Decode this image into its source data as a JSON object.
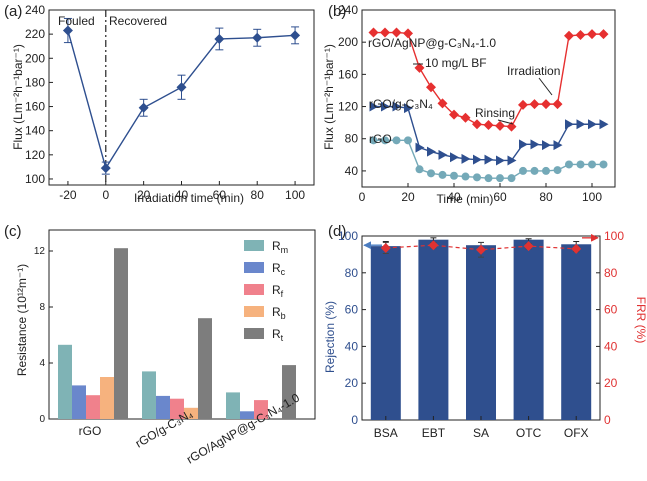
{
  "chart_data": [
    {
      "panel": "(a)",
      "type": "line",
      "xlabel": "Irradiation time (min)",
      "ylabel": "Flux (Lm⁻²h⁻¹bar⁻¹)",
      "xlim": [
        -30,
        110
      ],
      "ylim": [
        95,
        240
      ],
      "xticks": [
        -20,
        0,
        20,
        40,
        60,
        80,
        100
      ],
      "yticks": [
        100,
        120,
        140,
        160,
        180,
        200,
        220,
        240
      ],
      "divider_x": 0,
      "annotations": [
        "Fouled",
        "Recovered"
      ],
      "color": "#2e4f8f",
      "series": [
        {
          "name": "Flux",
          "x": [
            -20,
            0,
            20,
            40,
            60,
            80,
            100
          ],
          "y": [
            223,
            109,
            159,
            176,
            216,
            217,
            219
          ],
          "err": [
            10,
            5,
            7,
            10,
            9,
            7,
            7
          ]
        }
      ]
    },
    {
      "panel": "(b)",
      "type": "line",
      "xlabel": "Time (min)",
      "ylabel": "Flux (Lm⁻²h⁻¹bar⁻¹)",
      "xlim": [
        0,
        110
      ],
      "ylim": [
        20,
        240
      ],
      "xticks": [
        0,
        20,
        40,
        60,
        80,
        100
      ],
      "yticks": [
        40,
        80,
        120,
        160,
        200,
        240
      ],
      "annotations": [
        "10 mg/L BF",
        "Irradiation",
        "Rinsing"
      ],
      "series": [
        {
          "name": "rGO/AgNP@g-C₃N₄-1.0",
          "color": "#e63030",
          "marker": "diamond",
          "x": [
            5,
            10,
            15,
            20,
            25,
            30,
            35,
            40,
            45,
            50,
            55,
            60,
            65,
            70,
            75,
            80,
            85,
            90,
            95,
            100,
            105
          ],
          "y": [
            212,
            212,
            212,
            211,
            168,
            144,
            124,
            110,
            106,
            98,
            97,
            96,
            95,
            122,
            123,
            123,
            123,
            208,
            209,
            210,
            210
          ]
        },
        {
          "name": "rGO/g-C₃N₄",
          "color": "#2e4f8f",
          "marker": "triangle",
          "x": [
            5,
            10,
            15,
            20,
            25,
            30,
            35,
            40,
            45,
            50,
            55,
            60,
            65,
            70,
            75,
            80,
            85,
            90,
            95,
            100,
            105
          ],
          "y": [
            120,
            120,
            120,
            118,
            69,
            64,
            60,
            57,
            55,
            54,
            54,
            53,
            53,
            73,
            73,
            72,
            72,
            98,
            98,
            98,
            98
          ]
        },
        {
          "name": "rGO",
          "color": "#74a9b8",
          "marker": "circle",
          "x": [
            5,
            10,
            15,
            20,
            25,
            30,
            35,
            40,
            45,
            50,
            55,
            60,
            65,
            70,
            75,
            80,
            85,
            90,
            95,
            100,
            105
          ],
          "y": [
            78,
            78,
            78,
            78,
            42,
            37,
            35,
            34,
            33,
            32,
            31,
            31,
            31,
            40,
            40,
            40,
            41,
            48,
            48,
            48,
            48
          ]
        }
      ]
    },
    {
      "panel": "(c)",
      "type": "bar",
      "ylabel": "Resistance (10¹²m⁻¹)",
      "ylim": [
        0,
        13.5
      ],
      "yticks": [
        0,
        4,
        8,
        12
      ],
      "categories": [
        "rGO",
        "rGO/g-C₃N₄",
        "rGO/AgNP@g-C₃N₄-1.0"
      ],
      "series": [
        {
          "name": "R",
          "sub": "m",
          "color": "#7fb3b5",
          "values": [
            5.3,
            3.4,
            1.9
          ]
        },
        {
          "name": "R",
          "sub": "c",
          "color": "#6a87cc",
          "values": [
            2.4,
            1.65,
            0.55
          ]
        },
        {
          "name": "R",
          "sub": "f",
          "color": "#f0818c",
          "values": [
            1.7,
            1.45,
            1.35
          ]
        },
        {
          "name": "R",
          "sub": "b",
          "color": "#f6b27e",
          "values": [
            3.0,
            0.8,
            0.0
          ]
        },
        {
          "name": "R",
          "sub": "t",
          "color": "#7d7d7d",
          "values": [
            12.2,
            7.2,
            3.85
          ]
        }
      ]
    },
    {
      "panel": "(d)",
      "type": "bar",
      "ylabel": "Rejection (%)",
      "y2label": "FRR (%)",
      "ylim": [
        0,
        100
      ],
      "y2lim": [
        0,
        100
      ],
      "yticks": [
        0,
        20,
        40,
        60,
        80,
        100
      ],
      "categories": [
        "BSA",
        "EBT",
        "SA",
        "OTC",
        "OFX"
      ],
      "series": [
        {
          "name": "Rejection (%)",
          "color": "#2f4f8e",
          "values": [
            94.5,
            98,
            95,
            98,
            95.5
          ],
          "err": [
            2.5,
            1,
            1.5,
            0.5,
            1.5
          ]
        },
        {
          "name": "FRR (%)",
          "color": "#e03232",
          "axis": "right",
          "values": [
            93.5,
            95,
            92.5,
            94.5,
            93
          ],
          "err": [
            3,
            1.5,
            4,
            1.5,
            1.5
          ]
        }
      ]
    }
  ]
}
